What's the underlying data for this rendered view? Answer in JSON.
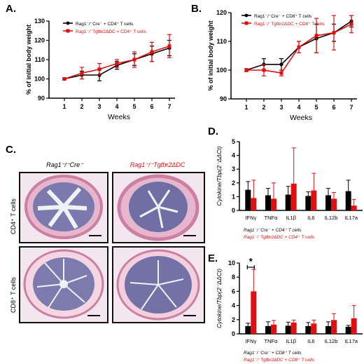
{
  "panels": {
    "A": "A.",
    "B": "B.",
    "C": "C.",
    "D": "D.",
    "E": "E."
  },
  "colors": {
    "control": "#000000",
    "ko": "#e01010"
  },
  "histology": {
    "col1_title": "Rag1⁻/⁻Cre⁻",
    "col2_title": "Rag1⁻/⁻Tgfbr2ΔDC",
    "row1_label": "CD4⁺ T cells",
    "row2_label": "CD8⁺ T cells"
  },
  "chart_data": [
    {
      "id": "A",
      "type": "line",
      "xlabel": "Weeks",
      "ylabel": "% of initial body weight",
      "x": [
        1,
        2,
        3,
        4,
        5,
        6,
        7
      ],
      "ylim": [
        90,
        130
      ],
      "yticks": [
        90,
        100,
        110,
        120,
        130
      ],
      "series": [
        {
          "name": "Rag1⁻/⁻Cre⁻ + CD4⁺ T cells",
          "color": "#000000",
          "values": [
            100,
            102,
            102,
            107,
            110,
            113,
            116
          ],
          "err": [
            0.5,
            2,
            3,
            2,
            3,
            4,
            4
          ]
        },
        {
          "name": "Rag1⁻/⁻Tgfbr2ΔDC + CD4⁺ T cells",
          "color": "#e01010",
          "values": [
            100,
            103,
            105,
            108,
            110,
            114,
            117
          ],
          "err": [
            0.5,
            3,
            3,
            2,
            4,
            5,
            6
          ]
        }
      ]
    },
    {
      "id": "B",
      "type": "line",
      "xlabel": "Weeks",
      "ylabel": "% of initial body weight",
      "x": [
        1,
        2,
        3,
        4,
        5,
        6,
        7
      ],
      "ylim": [
        90,
        120
      ],
      "yticks": [
        90,
        100,
        110,
        120
      ],
      "series": [
        {
          "name": "Rag1⁻/⁻Cre⁻ + CD8⁺ T cells",
          "color": "#000000",
          "values": [
            100,
            102,
            102,
            108,
            111,
            113,
            117
          ],
          "err": [
            0.5,
            2,
            2,
            2,
            5,
            3,
            2
          ]
        },
        {
          "name": "Rag1⁻/⁻Tgfbr2ΔDC + CD8⁺ T cells",
          "color": "#e01010",
          "values": [
            100,
            100,
            99,
            108,
            112,
            113,
            116
          ],
          "err": [
            0.5,
            2,
            1,
            2,
            6,
            6,
            3
          ]
        }
      ]
    },
    {
      "id": "D",
      "type": "bar",
      "ylabel": "Cytokine/Tbp(2⁻ΔΔCt)",
      "categories": [
        "IFNγ",
        "TNFα",
        "IL1β",
        "IL6",
        "IL12b",
        "IL17a"
      ],
      "ylim": [
        0,
        5
      ],
      "yticks": [
        0,
        1,
        2,
        3,
        4,
        5
      ],
      "series": [
        {
          "name": "Rag1⁻/⁻Cre⁻ + CD4⁺ T cells",
          "color": "#000000",
          "values": [
            1.5,
            1.1,
            1.15,
            1.05,
            1.1,
            1.4
          ],
          "err": [
            0.6,
            0.5,
            0.6,
            0.3,
            0.5,
            0.8
          ]
        },
        {
          "name": "Rag1⁻/⁻Tgfbr2ΔDC + CD4⁺ T cells",
          "color": "#e01010",
          "values": [
            0.9,
            0.85,
            1.95,
            1.45,
            0.85,
            0.35
          ],
          "err": [
            1.3,
            1.15,
            2.6,
            1.25,
            0.45,
            0.45
          ]
        }
      ]
    },
    {
      "id": "E",
      "type": "bar",
      "ylabel": "Cytokine/Tbp(2⁻ΔΔCt)",
      "categories": [
        "IFNγ",
        "TNFα",
        "IL1β",
        "IL6",
        "IL12b",
        "IL17a"
      ],
      "ylim": [
        0,
        10
      ],
      "yticks": [
        0,
        2,
        4,
        6,
        8,
        10
      ],
      "annotation": "*",
      "series": [
        {
          "name": "Rag1⁻/⁻Cre⁻ + CD8⁺ T cells",
          "color": "#000000",
          "values": [
            1.1,
            1.1,
            1.15,
            1.1,
            1.1,
            1.0
          ],
          "err": [
            0.4,
            0.6,
            0.5,
            0.5,
            0.6,
            0.2
          ]
        },
        {
          "name": "Rag1⁻/⁻Tgfbr2ΔDC + CD8⁺ T cells",
          "color": "#e01010",
          "values": [
            6.0,
            1.3,
            1.6,
            1.45,
            1.95,
            2.2
          ],
          "err": [
            3.1,
            0.6,
            0.35,
            0.5,
            0.9,
            1.8
          ]
        }
      ]
    }
  ]
}
